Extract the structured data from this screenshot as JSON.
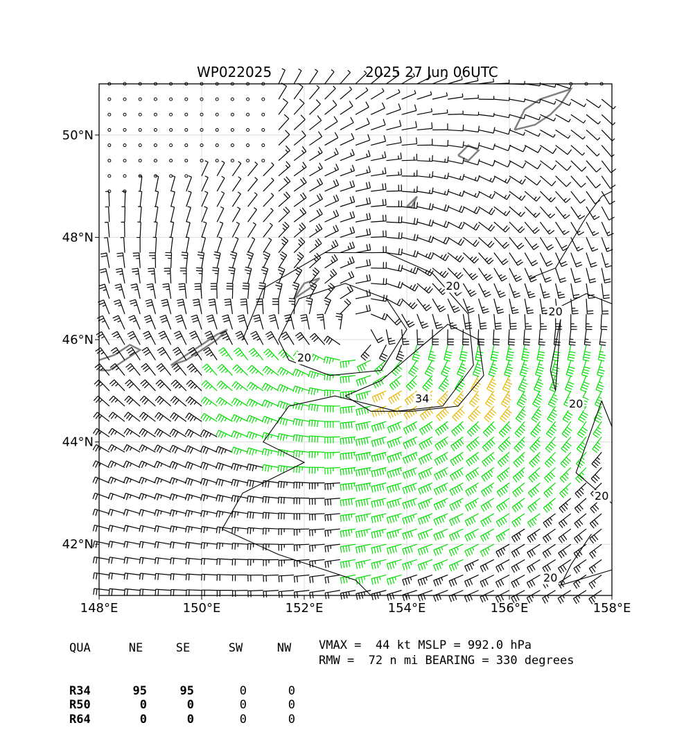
{
  "header": {
    "storm_id": "WP022025",
    "valid_time": "2025 27 Jun 06UTC"
  },
  "map": {
    "type": "wind-barb-map",
    "lon_range": [
      148,
      158
    ],
    "lat_range": [
      41,
      51
    ],
    "lon_ticks": [
      "148°E",
      "150°E",
      "152°E",
      "154°E",
      "156°E",
      "158°E"
    ],
    "lat_ticks": [
      "42°N",
      "44°N",
      "46°N",
      "48°N",
      "50°N"
    ],
    "contour_labels": [
      "20",
      "20",
      "20",
      "20",
      "20",
      "20",
      "34"
    ],
    "colors": {
      "barb_default": "#000000",
      "barb_34kt": "#00e000",
      "barb_50kt": "#e6b800",
      "coastline": "#808080",
      "grid": "#dddddd"
    }
  },
  "wind_radii": {
    "headers": [
      "QUA",
      "NE",
      "SE",
      "SW",
      "NW"
    ],
    "rows": [
      {
        "label": "R34",
        "values": [
          "95",
          "95",
          "0",
          "0"
        ]
      },
      {
        "label": "R50",
        "values": [
          "0",
          "0",
          "0",
          "0"
        ]
      },
      {
        "label": "R64",
        "values": [
          "0",
          "0",
          "0",
          "0"
        ]
      }
    ]
  },
  "summary": {
    "line1": "VMAX =  44 kt MSLP = 992.0 hPa",
    "line2": "RMW =  72 n mi BEARING = 330 degrees"
  }
}
